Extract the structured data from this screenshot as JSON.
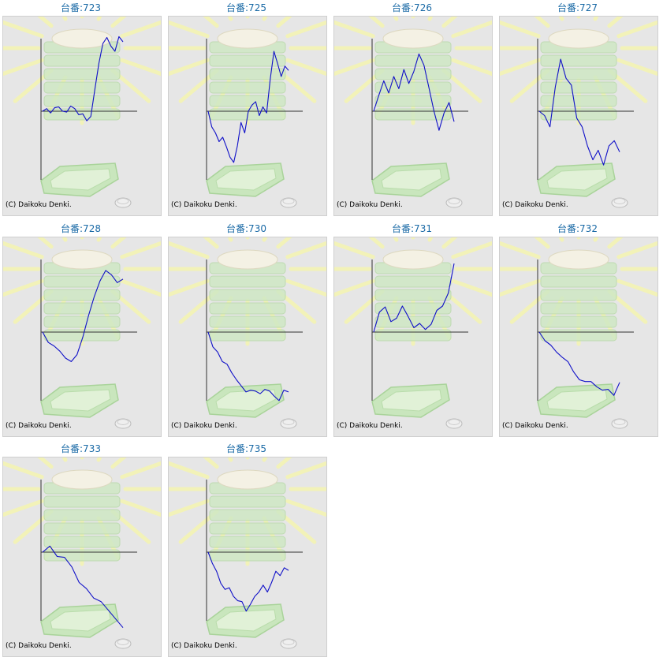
{
  "colors": {
    "line": "#1010c8",
    "title": "#1a6aa6",
    "panel_bg": "#e6e6e6",
    "axis": "#333333"
  },
  "copyright": "(C) Daikoku Denki.",
  "chart_data": [
    {
      "type": "line",
      "title": "台番:723",
      "values": [
        0,
        3,
        -2,
        4,
        5,
        0,
        -1,
        6,
        3,
        -4,
        -3,
        -11,
        -6,
        25,
        55,
        78,
        85,
        75,
        69,
        86,
        80
      ]
    },
    {
      "type": "line",
      "title": "台番:725",
      "values": [
        0,
        -18,
        -25,
        -35,
        -30,
        -41,
        -53,
        -59,
        -40,
        -13,
        -25,
        0,
        7,
        11,
        -5,
        5,
        -2,
        37,
        69,
        55,
        40,
        52,
        47
      ]
    },
    {
      "type": "line",
      "title": "台番:726",
      "values": [
        0,
        18,
        35,
        21,
        40,
        26,
        48,
        32,
        46,
        66,
        53,
        27,
        0,
        -22,
        -2,
        10,
        -12
      ]
    },
    {
      "type": "line",
      "title": "台番:727",
      "values": [
        0,
        -5,
        -18,
        28,
        60,
        38,
        30,
        -8,
        -18,
        -40,
        -56,
        -45,
        -62,
        -40,
        -34,
        -47
      ]
    },
    {
      "type": "line",
      "title": "台番:728",
      "values": [
        0,
        -12,
        -16,
        -22,
        -30,
        -34,
        -26,
        -6,
        19,
        41,
        59,
        71,
        66,
        57,
        61
      ]
    },
    {
      "type": "line",
      "title": "台番:730",
      "values": [
        0,
        -17,
        -23,
        -34,
        -37,
        -47,
        -55,
        -62,
        -69,
        -67,
        -68,
        -71,
        -66,
        -68,
        -74,
        -79,
        -67,
        -69
      ]
    },
    {
      "type": "line",
      "title": "台番:731",
      "values": [
        0,
        23,
        29,
        12,
        16,
        30,
        18,
        5,
        10,
        3,
        9,
        25,
        30,
        45,
        79
      ]
    },
    {
      "type": "line",
      "title": "台番:732",
      "values": [
        0,
        -10,
        -15,
        -23,
        -29,
        -34,
        -46,
        -55,
        -57,
        -57,
        -63,
        -67,
        -66,
        -73,
        -58
      ]
    },
    {
      "type": "line",
      "title": "台番:733",
      "values": [
        0,
        7,
        -5,
        -6,
        -17,
        -35,
        -42,
        -53,
        -57,
        -67,
        -77,
        -87
      ]
    },
    {
      "type": "line",
      "title": "台番:735",
      "values": [
        0,
        -13,
        -22,
        -36,
        -43,
        -41,
        -51,
        -56,
        -57,
        -68,
        -60,
        -51,
        -46,
        -38,
        -46,
        -35,
        -22,
        -27,
        -18,
        -21
      ]
    }
  ]
}
